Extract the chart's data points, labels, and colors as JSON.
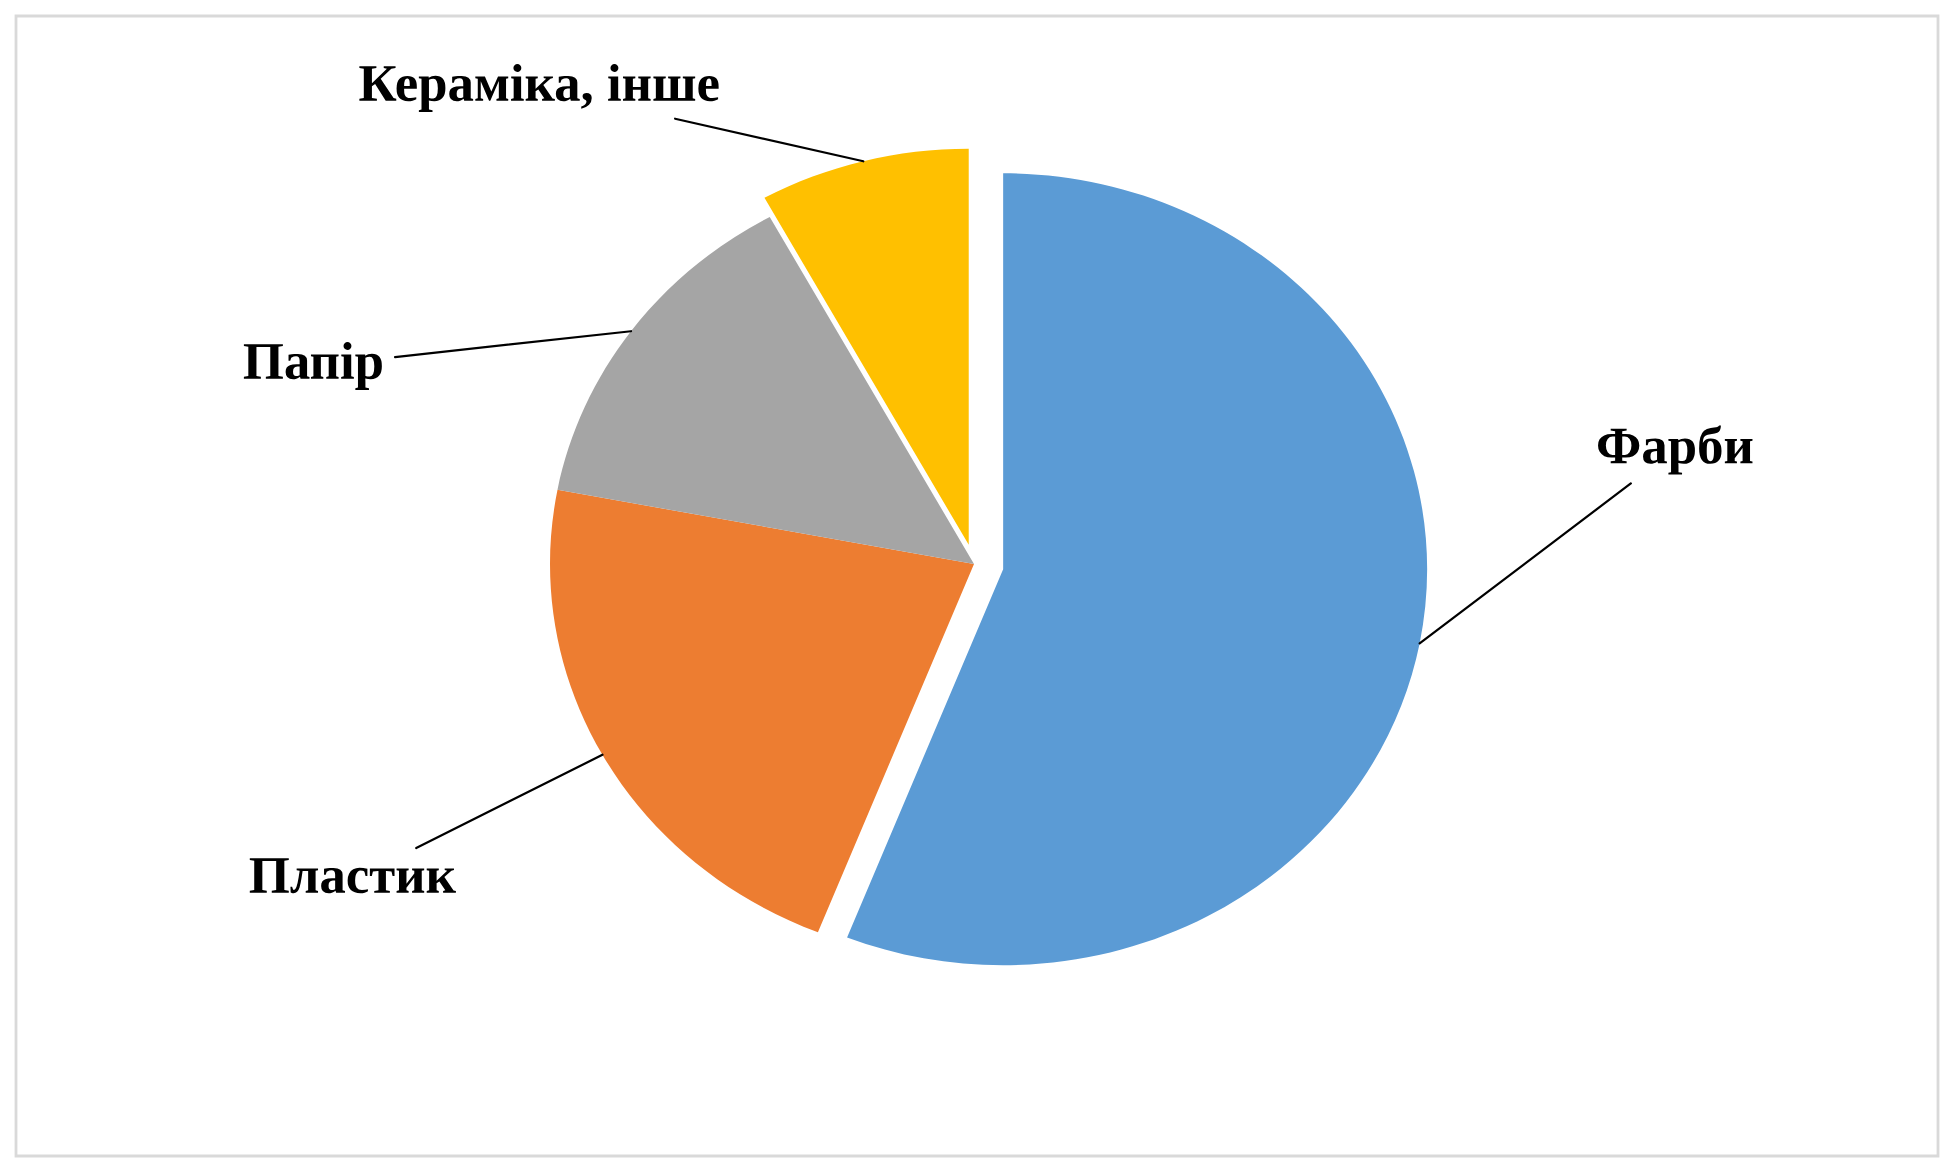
{
  "chart_data": {
    "type": "pie",
    "categories": [
      "Фарби",
      "Пластик",
      "Папір",
      "Кераміка, інше"
    ],
    "values": [
      56,
      22,
      14,
      8
    ],
    "colors": [
      "#5b9bd5",
      "#ed7d31",
      "#a5a5a5",
      "#ffc000"
    ]
  }
}
